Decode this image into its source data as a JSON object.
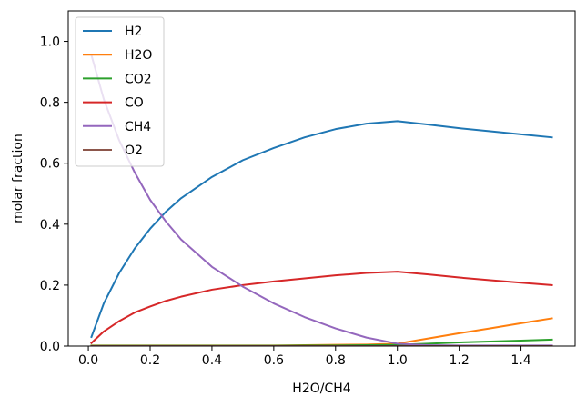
{
  "chart_data": {
    "type": "line",
    "title": "",
    "xlabel": "H2O/CH4",
    "ylabel": "molar fraction",
    "xlim": [
      -0.065,
      1.575
    ],
    "ylim": [
      0.0,
      1.1
    ],
    "x_ticks": [
      0.0,
      0.2,
      0.4,
      0.6,
      0.8,
      1.0,
      1.2,
      1.4
    ],
    "x_tick_labels": [
      "0.0",
      "0.2",
      "0.4",
      "0.6",
      "0.8",
      "1.0",
      "1.2",
      "1.4"
    ],
    "y_ticks": [
      0.0,
      0.2,
      0.4,
      0.6,
      0.8,
      1.0
    ],
    "y_tick_labels": [
      "0.0",
      "0.2",
      "0.4",
      "0.6",
      "0.8",
      "1.0"
    ],
    "grid": false,
    "legend_position": "top-left",
    "x": [
      0.01,
      0.05,
      0.1,
      0.15,
      0.2,
      0.25,
      0.3,
      0.4,
      0.5,
      0.6,
      0.7,
      0.8,
      0.9,
      1.0,
      1.1,
      1.2,
      1.3,
      1.4,
      1.5
    ],
    "series": [
      {
        "name": "H2",
        "color": "#1f77b4",
        "values": [
          0.03,
          0.14,
          0.24,
          0.32,
          0.385,
          0.44,
          0.485,
          0.555,
          0.61,
          0.65,
          0.685,
          0.712,
          0.73,
          0.738,
          0.727,
          0.715,
          0.705,
          0.695,
          0.685
        ]
      },
      {
        "name": "H2O",
        "color": "#ff7f0e",
        "values": [
          0.002,
          0.002,
          0.002,
          0.002,
          0.002,
          0.002,
          0.002,
          0.002,
          0.002,
          0.002,
          0.003,
          0.004,
          0.005,
          0.008,
          0.025,
          0.042,
          0.058,
          0.075,
          0.091
        ]
      },
      {
        "name": "CO2",
        "color": "#2ca02c",
        "values": [
          0.001,
          0.001,
          0.001,
          0.001,
          0.001,
          0.001,
          0.001,
          0.001,
          0.001,
          0.001,
          0.002,
          0.002,
          0.003,
          0.004,
          0.008,
          0.012,
          0.015,
          0.018,
          0.021
        ]
      },
      {
        "name": "CO",
        "color": "#d62728",
        "values": [
          0.01,
          0.048,
          0.082,
          0.11,
          0.13,
          0.148,
          0.162,
          0.185,
          0.2,
          0.212,
          0.222,
          0.232,
          0.24,
          0.244,
          0.235,
          0.225,
          0.216,
          0.208,
          0.2
        ]
      },
      {
        "name": "CH4",
        "color": "#9467bd",
        "values": [
          0.955,
          0.81,
          0.675,
          0.57,
          0.48,
          0.41,
          0.35,
          0.26,
          0.195,
          0.14,
          0.095,
          0.058,
          0.028,
          0.008,
          0.003,
          0.002,
          0.002,
          0.002,
          0.002
        ]
      },
      {
        "name": "O2",
        "color": "#8c564b",
        "values": [
          0.0,
          0.0,
          0.0,
          0.0,
          0.0,
          0.0,
          0.0,
          0.0,
          0.0,
          0.0,
          0.0,
          0.0,
          0.0,
          0.0,
          0.0,
          0.0,
          0.0,
          0.0,
          0.0
        ]
      }
    ]
  }
}
